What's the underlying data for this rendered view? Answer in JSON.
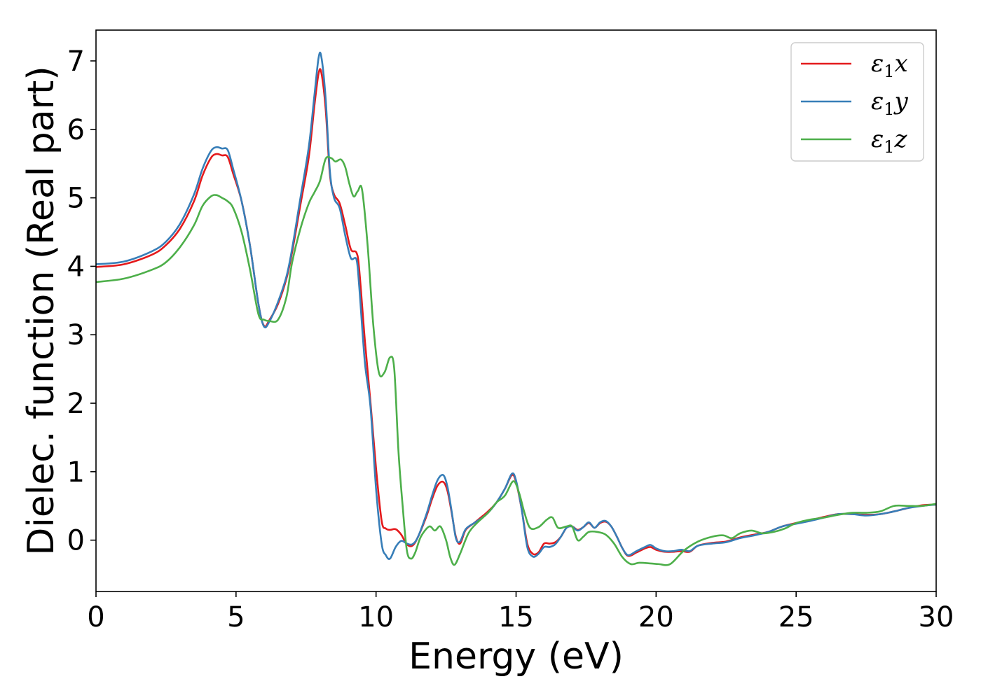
{
  "chart_data": {
    "type": "line",
    "title": "",
    "xlabel": "Energy (eV)",
    "ylabel": "Dielec. function (Real part)",
    "xlim": [
      0,
      30
    ],
    "ylim": [
      -0.75,
      7.45
    ],
    "xticks": [
      0,
      5,
      10,
      15,
      20,
      25,
      30
    ],
    "yticks": [
      0,
      1,
      2,
      3,
      4,
      5,
      6,
      7
    ],
    "xtick_labels": [
      "0",
      "5",
      "10",
      "15",
      "20",
      "25",
      "30"
    ],
    "ytick_labels": [
      "0",
      "1",
      "2",
      "3",
      "4",
      "5",
      "6",
      "7"
    ],
    "grid": false,
    "legend_position": "top-right",
    "series": [
      {
        "name": "ε1x",
        "legend_symbol": "ε",
        "legend_subscript": "1",
        "legend_suffix": "x",
        "color": "#e41a1c",
        "x": [
          0,
          1,
          2,
          2.5,
          3,
          3.5,
          3.8,
          4.1,
          4.3,
          4.5,
          4.7,
          4.9,
          5.2,
          5.5,
          5.8,
          6.0,
          6.2,
          6.5,
          6.8,
          7.0,
          7.3,
          7.6,
          7.8,
          7.95,
          8.05,
          8.2,
          8.35,
          8.5,
          8.7,
          8.9,
          9.1,
          9.3,
          9.4,
          9.6,
          9.8,
          10.0,
          10.2,
          10.35,
          10.5,
          10.7,
          10.9,
          11.1,
          11.3,
          11.5,
          11.8,
          12.0,
          12.2,
          12.4,
          12.55,
          12.7,
          12.85,
          13.0,
          13.2,
          13.5,
          13.8,
          14.0,
          14.3,
          14.6,
          14.85,
          15.0,
          15.2,
          15.4,
          15.6,
          15.8,
          16.0,
          16.2,
          16.4,
          16.6,
          16.8,
          17.0,
          17.2,
          17.4,
          17.6,
          17.8,
          18.0,
          18.2,
          18.4,
          18.6,
          18.8,
          19.0,
          19.3,
          19.6,
          19.8,
          20.0,
          20.3,
          20.6,
          20.9,
          21.2,
          21.5,
          22.0,
          22.5,
          23.0,
          23.5,
          24.0,
          24.5,
          25.0,
          25.5,
          26.0,
          26.5,
          27.0,
          27.5,
          28.0,
          28.5,
          29.0,
          29.5,
          30.0
        ],
        "y": [
          3.99,
          4.03,
          4.17,
          4.31,
          4.55,
          4.95,
          5.32,
          5.58,
          5.64,
          5.62,
          5.6,
          5.35,
          4.95,
          4.3,
          3.45,
          3.13,
          3.22,
          3.45,
          3.82,
          4.2,
          4.9,
          5.6,
          6.35,
          6.82,
          6.82,
          6.3,
          5.35,
          5.05,
          4.92,
          4.6,
          4.25,
          4.2,
          3.95,
          2.92,
          2.02,
          1.05,
          0.28,
          0.17,
          0.15,
          0.16,
          0.08,
          -0.06,
          -0.08,
          0.05,
          0.35,
          0.6,
          0.8,
          0.85,
          0.72,
          0.4,
          0.05,
          -0.05,
          0.15,
          0.25,
          0.35,
          0.42,
          0.55,
          0.75,
          0.95,
          0.85,
          0.45,
          -0.05,
          -0.2,
          -0.18,
          -0.05,
          -0.05,
          -0.03,
          0.05,
          0.18,
          0.2,
          0.15,
          0.19,
          0.25,
          0.18,
          0.25,
          0.27,
          0.2,
          0.05,
          -0.12,
          -0.23,
          -0.18,
          -0.12,
          -0.1,
          -0.14,
          -0.17,
          -0.17,
          -0.16,
          -0.17,
          -0.08,
          -0.04,
          -0.02,
          0.04,
          0.08,
          0.12,
          0.2,
          0.25,
          0.29,
          0.34,
          0.38,
          0.38,
          0.37,
          0.38,
          0.42,
          0.47,
          0.51,
          0.52
        ]
      },
      {
        "name": "ε1y",
        "legend_symbol": "ε",
        "legend_subscript": "1",
        "legend_suffix": "y",
        "color": "#377eb8",
        "x": [
          0,
          1,
          2,
          2.5,
          3,
          3.5,
          3.8,
          4.1,
          4.3,
          4.5,
          4.7,
          4.9,
          5.2,
          5.5,
          5.8,
          6.0,
          6.2,
          6.5,
          6.8,
          7.0,
          7.3,
          7.6,
          7.8,
          7.95,
          8.05,
          8.2,
          8.35,
          8.5,
          8.7,
          8.9,
          9.1,
          9.3,
          9.4,
          9.6,
          9.8,
          10.0,
          10.2,
          10.35,
          10.5,
          10.7,
          10.9,
          11.1,
          11.3,
          11.5,
          11.8,
          12.0,
          12.2,
          12.4,
          12.55,
          12.7,
          12.85,
          13.0,
          13.2,
          13.5,
          13.8,
          14.0,
          14.3,
          14.6,
          14.85,
          15.0,
          15.2,
          15.4,
          15.6,
          15.8,
          16.0,
          16.2,
          16.4,
          16.6,
          16.8,
          17.0,
          17.2,
          17.4,
          17.6,
          17.8,
          18.0,
          18.2,
          18.4,
          18.6,
          18.8,
          19.0,
          19.3,
          19.6,
          19.8,
          20.0,
          20.3,
          20.6,
          20.9,
          21.2,
          21.5,
          22.0,
          22.5,
          23.0,
          23.5,
          24.0,
          24.5,
          25.0,
          25.5,
          26.0,
          26.5,
          27.0,
          27.5,
          28.0,
          28.5,
          29.0,
          29.5,
          30.0
        ],
        "y": [
          4.03,
          4.07,
          4.22,
          4.36,
          4.62,
          5.05,
          5.42,
          5.68,
          5.74,
          5.72,
          5.7,
          5.42,
          4.95,
          4.3,
          3.45,
          3.12,
          3.2,
          3.48,
          3.85,
          4.25,
          5.0,
          5.75,
          6.5,
          7.05,
          7.05,
          6.45,
          5.4,
          5.0,
          4.85,
          4.45,
          4.12,
          4.1,
          3.7,
          2.6,
          1.95,
          0.75,
          -0.05,
          -0.22,
          -0.27,
          -0.1,
          -0.01,
          -0.05,
          -0.06,
          0.05,
          0.38,
          0.65,
          0.88,
          0.95,
          0.78,
          0.42,
          0.03,
          -0.02,
          0.16,
          0.25,
          0.33,
          0.4,
          0.55,
          0.75,
          0.97,
          0.87,
          0.45,
          -0.1,
          -0.24,
          -0.2,
          -0.1,
          -0.1,
          -0.06,
          0.05,
          0.18,
          0.2,
          0.14,
          0.19,
          0.26,
          0.18,
          0.26,
          0.28,
          0.2,
          0.05,
          -0.12,
          -0.22,
          -0.16,
          -0.1,
          -0.07,
          -0.12,
          -0.16,
          -0.16,
          -0.14,
          -0.16,
          -0.08,
          -0.05,
          -0.03,
          0.03,
          0.07,
          0.12,
          0.2,
          0.24,
          0.28,
          0.33,
          0.38,
          0.38,
          0.36,
          0.38,
          0.42,
          0.47,
          0.5,
          0.52
        ]
      },
      {
        "name": "ε1z",
        "legend_symbol": "ε",
        "legend_subscript": "1",
        "legend_suffix": "z",
        "color": "#4daf4a",
        "x": [
          0,
          1,
          2,
          2.5,
          3,
          3.5,
          3.8,
          4.1,
          4.3,
          4.5,
          4.7,
          4.9,
          5.2,
          5.5,
          5.8,
          6.0,
          6.2,
          6.5,
          6.8,
          7.0,
          7.3,
          7.6,
          7.8,
          8.0,
          8.2,
          8.4,
          8.55,
          8.75,
          8.9,
          9.05,
          9.2,
          9.35,
          9.5,
          9.7,
          9.9,
          10.1,
          10.3,
          10.5,
          10.65,
          10.8,
          10.95,
          11.1,
          11.25,
          11.4,
          11.6,
          11.9,
          12.1,
          12.3,
          12.5,
          12.65,
          12.8,
          13.0,
          13.3,
          13.6,
          14.0,
          14.3,
          14.6,
          14.9,
          15.1,
          15.3,
          15.5,
          15.8,
          16.1,
          16.3,
          16.5,
          16.8,
          17.0,
          17.2,
          17.4,
          17.6,
          17.9,
          18.2,
          18.5,
          18.8,
          19.1,
          19.4,
          19.8,
          20.1,
          20.5,
          21.0,
          21.5,
          22.0,
          22.4,
          22.7,
          23.0,
          23.4,
          23.8,
          24.2,
          24.6,
          25.0,
          25.5,
          26.0,
          26.5,
          27.0,
          27.5,
          28.0,
          28.5,
          29.0,
          29.5,
          30.0
        ],
        "y": [
          3.77,
          3.82,
          3.95,
          4.06,
          4.28,
          4.6,
          4.88,
          5.02,
          5.04,
          5.0,
          4.95,
          4.85,
          4.5,
          3.95,
          3.3,
          3.22,
          3.2,
          3.22,
          3.55,
          4.05,
          4.55,
          4.92,
          5.08,
          5.25,
          5.57,
          5.58,
          5.53,
          5.56,
          5.45,
          5.2,
          5.02,
          5.1,
          5.12,
          4.3,
          3.15,
          2.45,
          2.45,
          2.67,
          2.5,
          1.3,
          0.5,
          -0.15,
          -0.27,
          -0.18,
          0.05,
          0.2,
          0.14,
          0.2,
          0.0,
          -0.25,
          -0.36,
          -0.2,
          0.1,
          0.25,
          0.4,
          0.55,
          0.65,
          0.86,
          0.7,
          0.4,
          0.18,
          0.19,
          0.3,
          0.33,
          0.18,
          0.2,
          0.2,
          0.0,
          0.05,
          0.12,
          0.12,
          0.08,
          -0.05,
          -0.25,
          -0.35,
          -0.33,
          -0.34,
          -0.35,
          -0.35,
          -0.15,
          -0.02,
          0.05,
          0.07,
          0.03,
          0.1,
          0.14,
          0.1,
          0.12,
          0.17,
          0.25,
          0.3,
          0.33,
          0.37,
          0.4,
          0.4,
          0.42,
          0.5,
          0.5,
          0.5,
          0.53
        ]
      }
    ]
  }
}
